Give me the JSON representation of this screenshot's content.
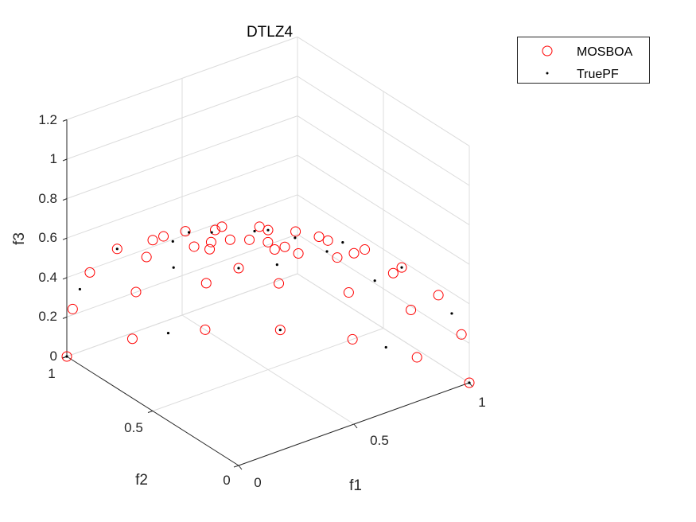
{
  "chart_data": {
    "type": "scatter3d",
    "title": "DTLZ4",
    "xlabel": "f1",
    "ylabel": "f2",
    "zlabel": "f3",
    "xlim": [
      0,
      1
    ],
    "ylim": [
      0,
      1
    ],
    "zlim": [
      0,
      1.2
    ],
    "xticks": [
      "0",
      "0.5",
      "1"
    ],
    "yticks": [
      "0",
      "0.5",
      "1"
    ],
    "zticks": [
      "0",
      "0.2",
      "0.4",
      "0.6",
      "0.8",
      "1",
      "1.2"
    ],
    "grid": true,
    "legend_position": "top-right",
    "series": [
      {
        "name": "MOSBOA",
        "marker": "circle",
        "color": "#ff0000",
        "points": [
          [
            0,
            0,
            1
          ],
          [
            0.259,
            0,
            0.966
          ],
          [
            0.25,
            0.067,
            0.966
          ],
          [
            0.224,
            0.13,
            0.966
          ],
          [
            0.183,
            0.183,
            0.966
          ],
          [
            0.13,
            0.224,
            0.966
          ],
          [
            0.067,
            0.25,
            0.966
          ],
          [
            0,
            0.259,
            0.966
          ],
          [
            0.5,
            0,
            0.866
          ],
          [
            0.483,
            0.129,
            0.866
          ],
          [
            0.433,
            0.25,
            0.866
          ],
          [
            0.354,
            0.354,
            0.866
          ],
          [
            0.25,
            0.433,
            0.866
          ],
          [
            0.129,
            0.483,
            0.866
          ],
          [
            0,
            0.5,
            0.866
          ],
          [
            0.707,
            0,
            0.707
          ],
          [
            0.683,
            0.183,
            0.707
          ],
          [
            0.612,
            0.354,
            0.707
          ],
          [
            0.5,
            0.5,
            0.707
          ],
          [
            0.354,
            0.612,
            0.707
          ],
          [
            0.183,
            0.683,
            0.707
          ],
          [
            0,
            0.707,
            0.707
          ],
          [
            0.866,
            0,
            0.5
          ],
          [
            0.837,
            0.224,
            0.5
          ],
          [
            0.75,
            0.433,
            0.5
          ],
          [
            0.612,
            0.612,
            0.5
          ],
          [
            0.433,
            0.75,
            0.5
          ],
          [
            0.224,
            0.837,
            0.5
          ],
          [
            0,
            0.866,
            0.5
          ],
          [
            0.966,
            0,
            0.259
          ],
          [
            0.933,
            0.25,
            0.259
          ],
          [
            0.837,
            0.483,
            0.259
          ],
          [
            0.683,
            0.683,
            0.259
          ],
          [
            0.483,
            0.837,
            0.259
          ],
          [
            0.25,
            0.933,
            0.259
          ],
          [
            0,
            0.966,
            0.259
          ],
          [
            1,
            0,
            0
          ],
          [
            0.966,
            0.259,
            0
          ],
          [
            0.866,
            0.5,
            0
          ],
          [
            0.707,
            0.707,
            0
          ],
          [
            0.5,
            0.866,
            0
          ],
          [
            0.259,
            0.966,
            0
          ],
          [
            0,
            1,
            0
          ]
        ]
      },
      {
        "name": "TruePF",
        "marker": "dot",
        "color": "#000000",
        "points": [
          [
            0,
            0,
            1
          ],
          [
            0.383,
            0,
            0.924
          ],
          [
            0.354,
            0.147,
            0.924
          ],
          [
            0.271,
            0.271,
            0.924
          ],
          [
            0.147,
            0.354,
            0.924
          ],
          [
            0,
            0.383,
            0.924
          ],
          [
            0.707,
            0,
            0.707
          ],
          [
            0.653,
            0.271,
            0.707
          ],
          [
            0.5,
            0.5,
            0.707
          ],
          [
            0.271,
            0.653,
            0.707
          ],
          [
            0,
            0.707,
            0.707
          ],
          [
            0.924,
            0,
            0.383
          ],
          [
            0.854,
            0.354,
            0.383
          ],
          [
            0.653,
            0.653,
            0.383
          ],
          [
            0.354,
            0.854,
            0.383
          ],
          [
            0,
            0.924,
            0.383
          ],
          [
            1,
            0,
            0
          ],
          [
            0.924,
            0.383,
            0
          ],
          [
            0.707,
            0.707,
            0
          ],
          [
            0.383,
            0.924,
            0
          ],
          [
            0,
            1,
            0
          ]
        ]
      }
    ]
  }
}
